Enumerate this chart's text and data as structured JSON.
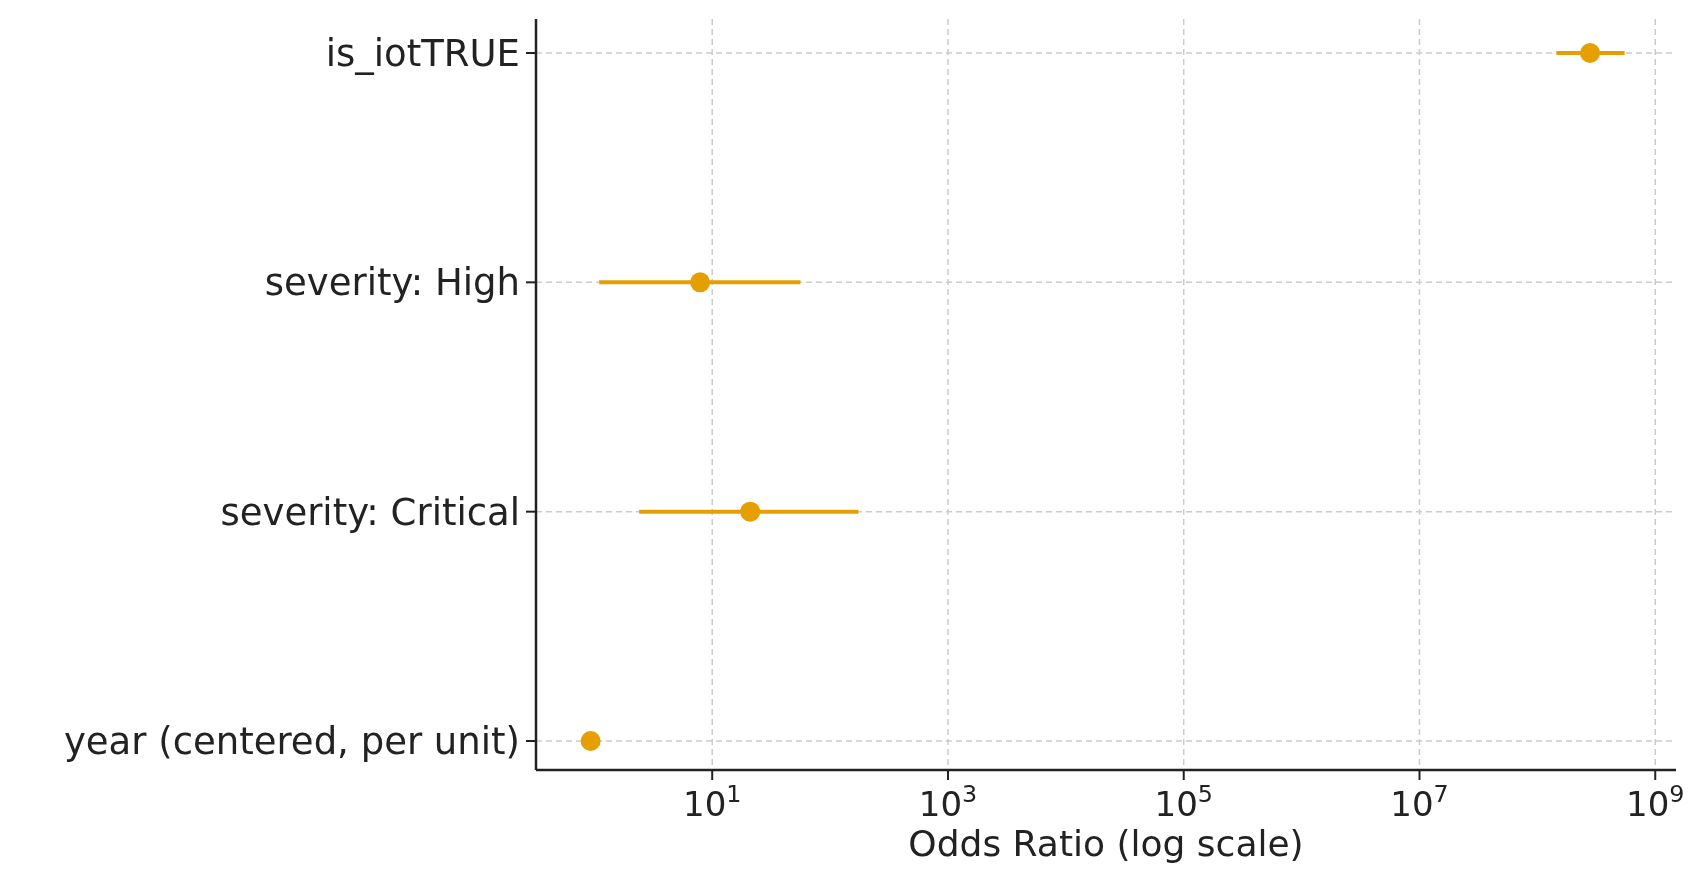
{
  "chart_data": {
    "type": "scatter",
    "orientation": "horizontal",
    "xlabel": "Odds Ratio (log scale)",
    "categories": [
      "is_iotTRUE",
      "severity: High",
      "severity: Critical",
      "year (centered, per unit)"
    ],
    "values": [
      280000000,
      7.9,
      21,
      0.93
    ],
    "errors": [
      [
        145000000,
        550000000
      ],
      [
        1.1,
        56
      ],
      [
        2.4,
        174
      ],
      null
    ],
    "color": "#e69f00",
    "log": "x",
    "xlim": [
      0.32,
      1500000000.0
    ],
    "xticks": [
      {
        "value": 10,
        "label": "10$^{1}$"
      },
      {
        "value": 1000,
        "label": "10$^{3}$"
      },
      {
        "value": 100000,
        "label": "10$^{5}$"
      },
      {
        "value": 10000000,
        "label": "10$^{7}$"
      },
      {
        "value": 1000000000,
        "label": "10$^{9}$"
      }
    ],
    "grid": true,
    "marker": "circle"
  }
}
